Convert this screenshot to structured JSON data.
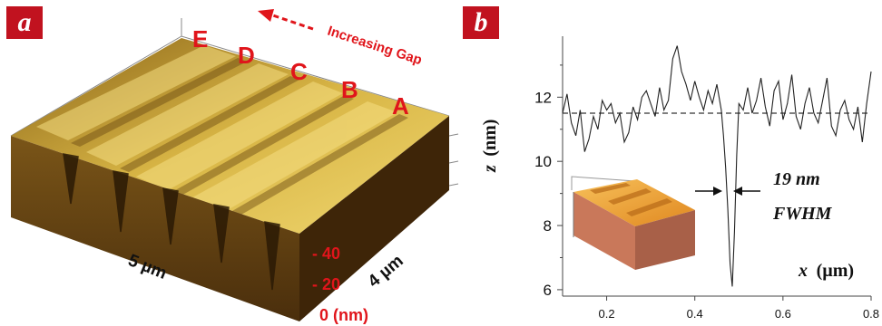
{
  "panel_a": {
    "label": "a",
    "groove_letters": [
      "E",
      "D",
      "C",
      "B",
      "A"
    ],
    "arrow_label": "Increasing Gap",
    "axis_x_label": "5 µm",
    "axis_y_label": "4 µm",
    "z_ticks": [
      "- 40",
      "- 20",
      "0 (nm)"
    ],
    "colors": {
      "surface_dark": "#6b4a12",
      "surface_light": "#f1d56a",
      "side": "#5a3a12",
      "accent": "#e0151b"
    }
  },
  "panel_b": {
    "label": "b",
    "annotation_line1": "19 nm",
    "annotation_line2": "FWHM",
    "inset_description_colors": {
      "top": "#f0a030",
      "side": "#c9785a"
    }
  },
  "chart_data": {
    "type": "line",
    "xlabel_symbol": "x",
    "xlabel_unit": "(µm)",
    "ylabel_symbol": "z",
    "ylabel_unit": "(nm)",
    "xlim": [
      0.1,
      0.8
    ],
    "ylim": [
      5.8,
      13.9
    ],
    "x_ticks": [
      0.2,
      0.4,
      0.6,
      0.8
    ],
    "y_ticks": [
      6,
      8,
      10,
      12
    ],
    "reference_line": {
      "y": 11.5,
      "style": "dashed"
    },
    "series": [
      {
        "x": [
          0.1,
          0.11,
          0.12,
          0.13,
          0.14,
          0.15,
          0.16,
          0.17,
          0.18,
          0.19,
          0.2,
          0.21,
          0.22,
          0.23,
          0.24,
          0.25,
          0.26,
          0.27,
          0.28,
          0.29,
          0.3,
          0.31,
          0.32,
          0.33,
          0.34,
          0.35,
          0.36,
          0.37,
          0.38,
          0.39,
          0.4,
          0.41,
          0.42,
          0.43,
          0.44,
          0.45,
          0.46,
          0.465,
          0.47,
          0.475,
          0.48,
          0.485,
          0.49,
          0.495,
          0.5,
          0.51,
          0.52,
          0.53,
          0.54,
          0.55,
          0.56,
          0.57,
          0.58,
          0.59,
          0.6,
          0.61,
          0.62,
          0.63,
          0.64,
          0.65,
          0.66,
          0.67,
          0.68,
          0.69,
          0.7,
          0.71,
          0.72,
          0.73,
          0.74,
          0.75,
          0.76,
          0.77,
          0.78,
          0.79,
          0.8
        ],
        "y": [
          11.5,
          12.1,
          11.2,
          10.8,
          11.6,
          10.3,
          10.7,
          11.4,
          11.0,
          11.9,
          11.6,
          11.8,
          11.2,
          11.5,
          10.6,
          10.9,
          11.7,
          11.3,
          12.0,
          12.2,
          11.8,
          11.4,
          12.3,
          11.6,
          11.9,
          13.2,
          13.6,
          12.8,
          12.4,
          11.9,
          12.5,
          12.0,
          11.6,
          12.2,
          11.8,
          12.4,
          11.6,
          10.8,
          9.8,
          8.5,
          6.8,
          6.1,
          7.8,
          10.2,
          11.8,
          11.6,
          12.3,
          11.5,
          11.9,
          12.6,
          11.7,
          11.1,
          12.2,
          12.5,
          11.3,
          11.8,
          12.7,
          11.4,
          11.0,
          11.8,
          12.3,
          11.5,
          11.2,
          11.9,
          12.6,
          11.1,
          10.8,
          11.6,
          11.9,
          11.3,
          11.0,
          11.7,
          10.6,
          11.8,
          12.8
        ]
      }
    ]
  }
}
